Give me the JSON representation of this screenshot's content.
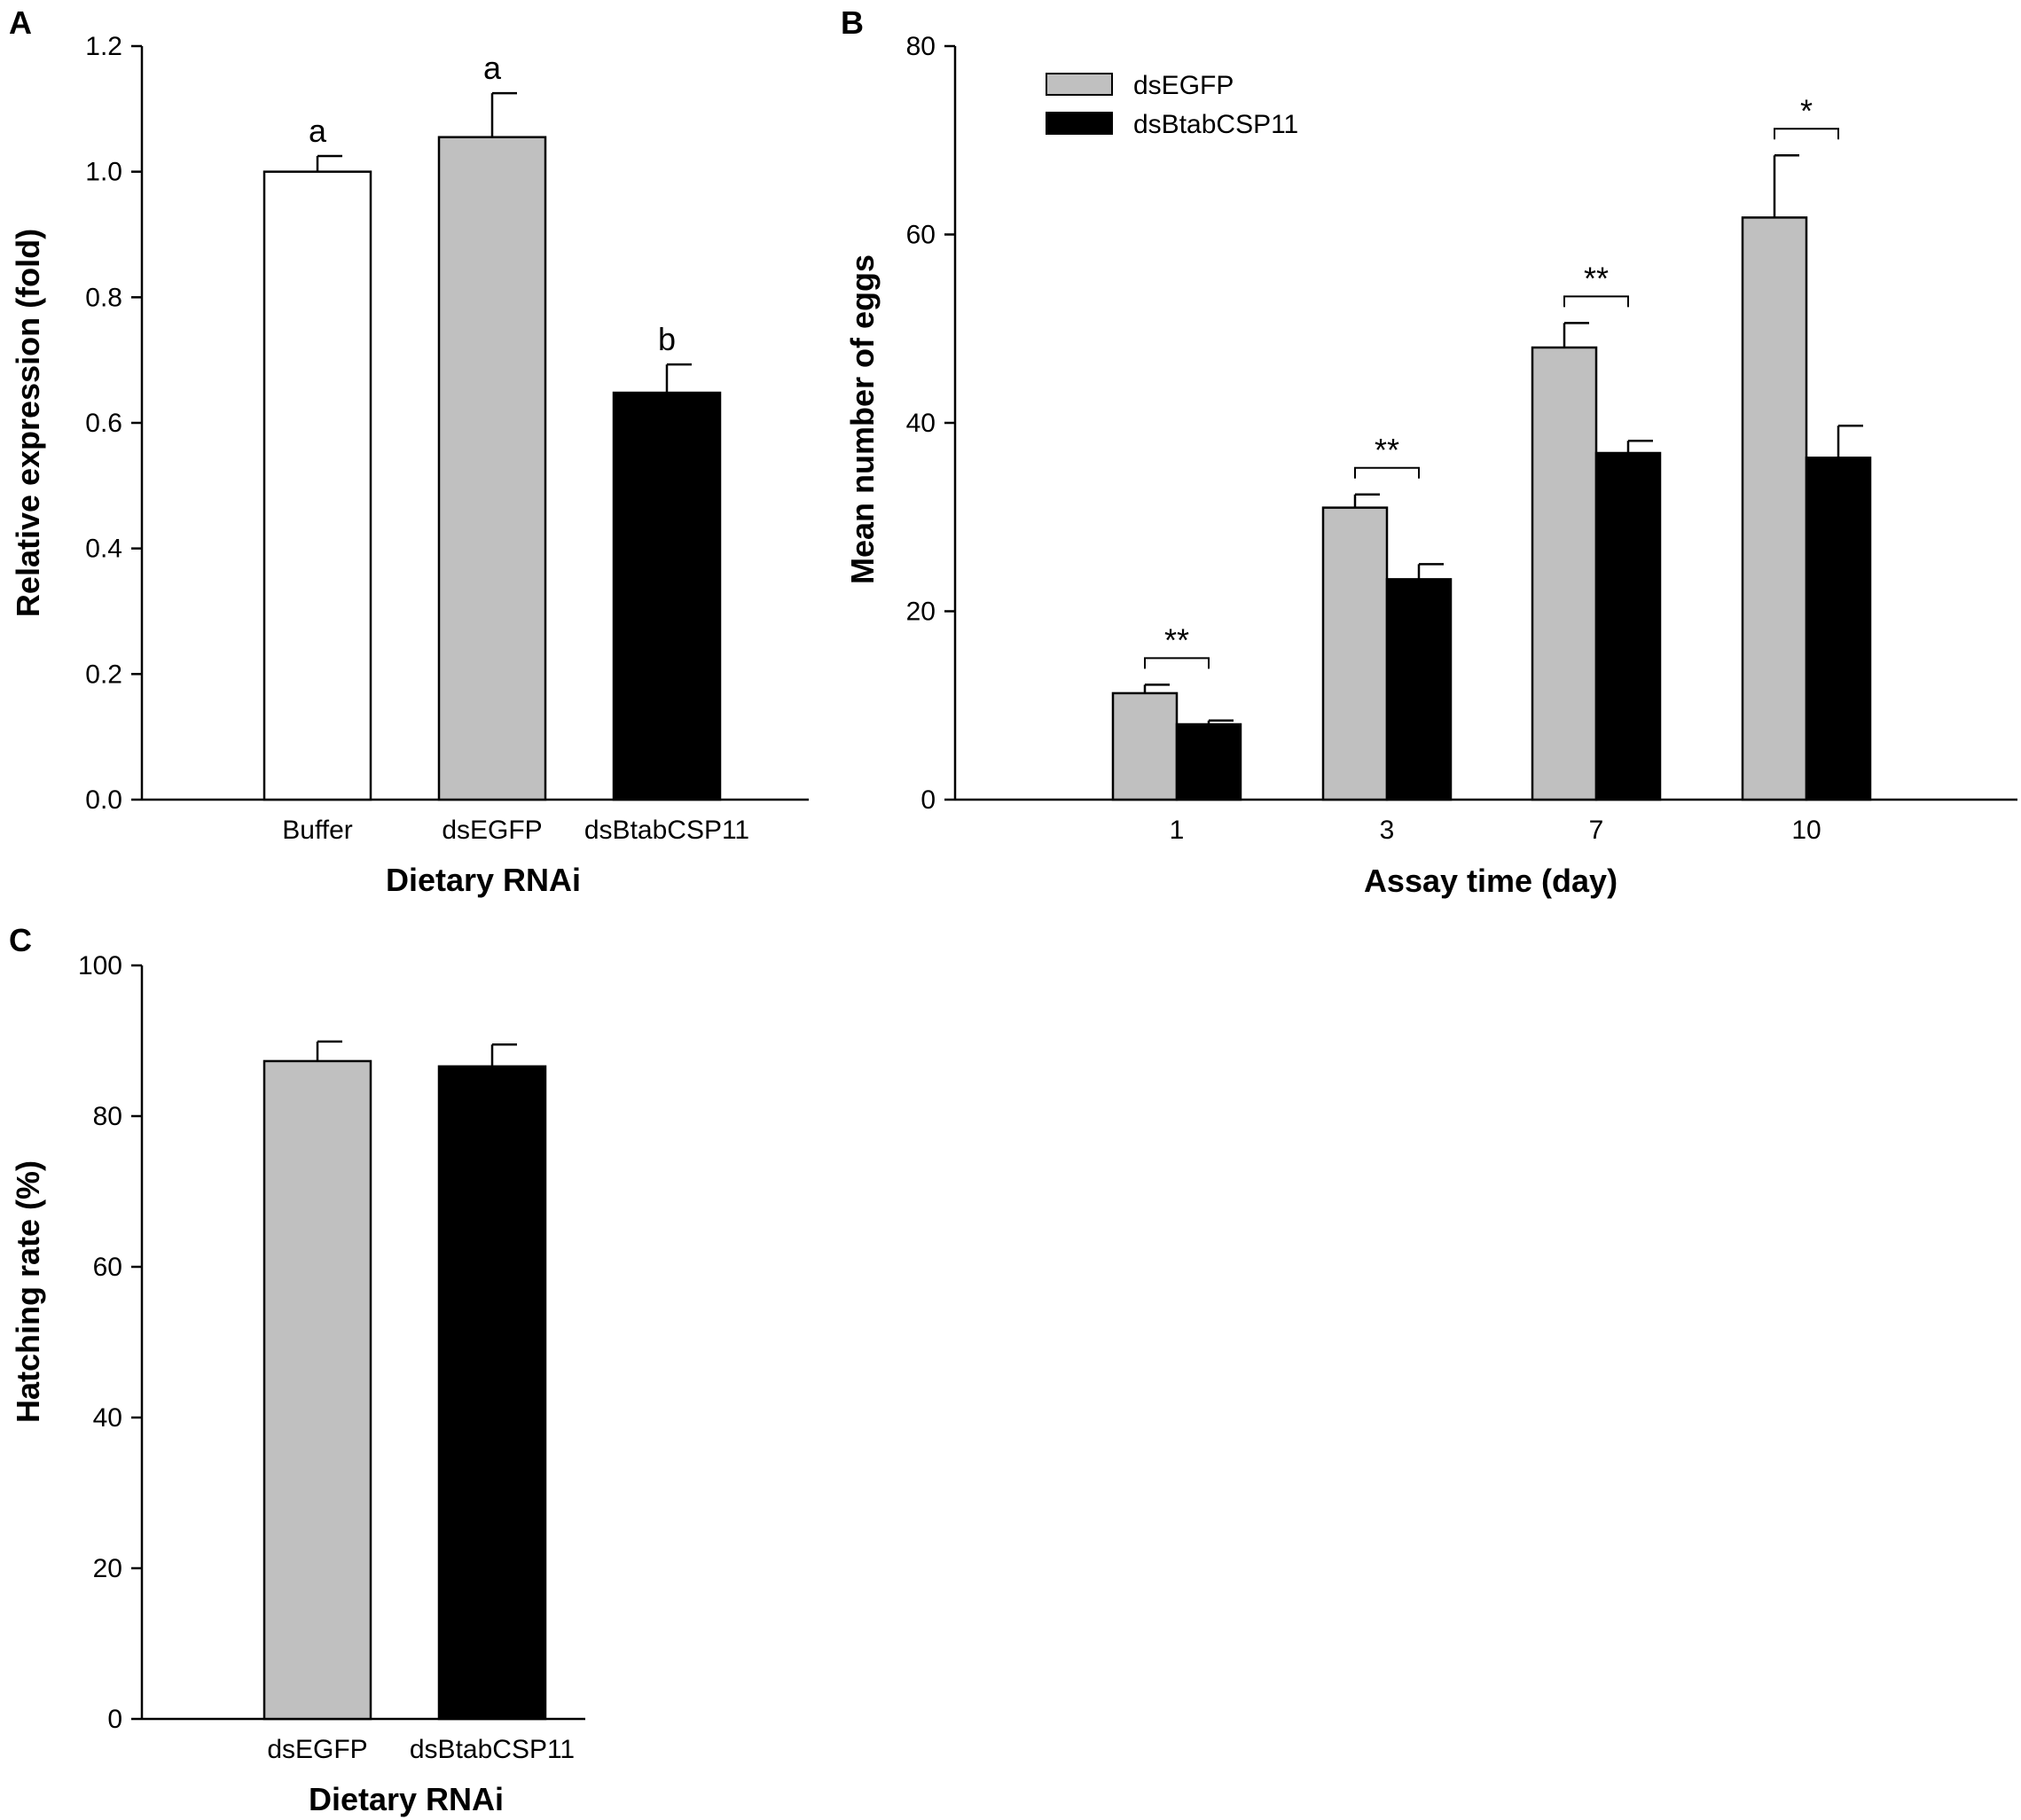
{
  "chart_data": [
    {
      "id": "A",
      "panel_label": "A",
      "type": "bar",
      "title": "",
      "xlabel": "Dietary RNAi",
      "ylabel": "Relative expression (fold)",
      "ylim": [
        0,
        1.2
      ],
      "yticks": [
        0.0,
        0.2,
        0.4,
        0.6,
        0.8,
        1.0,
        1.2
      ],
      "ytick_labels": [
        "0.0",
        "0.2",
        "0.4",
        "0.6",
        "0.8",
        "1.0",
        "1.2"
      ],
      "categories": [
        "Buffer",
        "dsEGFP",
        "dsBtabCSP11"
      ],
      "values": [
        1.0,
        1.055,
        0.648
      ],
      "errors": [
        0.025,
        0.07,
        0.045
      ],
      "colors": [
        "#ffffff",
        "#c0c0c0",
        "#000000"
      ],
      "annotations": [
        "a",
        "a",
        "b"
      ]
    },
    {
      "id": "B",
      "panel_label": "B",
      "type": "bar",
      "title": "",
      "xlabel": "Assay time (day)",
      "ylabel": "Mean number of eggs",
      "ylim": [
        0,
        80
      ],
      "yticks": [
        0,
        20,
        40,
        60,
        80
      ],
      "ytick_labels": [
        "0",
        "20",
        "40",
        "60",
        "80"
      ],
      "categories": [
        "1",
        "3",
        "7",
        "10"
      ],
      "series": [
        {
          "name": "dsEGFP",
          "color": "#c0c0c0",
          "values": [
            11.3,
            31.0,
            48.0,
            61.8
          ],
          "errors": [
            0.9,
            1.4,
            2.6,
            6.6
          ]
        },
        {
          "name": "dsBtabCSP11",
          "color": "#000000",
          "values": [
            8.0,
            23.4,
            36.8,
            36.3
          ],
          "errors": [
            0.4,
            1.6,
            1.3,
            3.4
          ]
        }
      ],
      "significance": [
        "**",
        "**",
        "**",
        "*"
      ],
      "legend_position": "top-left"
    },
    {
      "id": "C",
      "panel_label": "C",
      "type": "bar",
      "title": "",
      "xlabel": "Dietary RNAi",
      "ylabel": "Hatching rate (%)",
      "ylim": [
        0,
        100
      ],
      "yticks": [
        0,
        20,
        40,
        60,
        80,
        100
      ],
      "ytick_labels": [
        "0",
        "20",
        "40",
        "60",
        "80",
        "100"
      ],
      "categories": [
        "dsEGFP",
        "dsBtabCSP11"
      ],
      "values": [
        87.3,
        86.6
      ],
      "errors": [
        2.6,
        2.9
      ],
      "colors": [
        "#c0c0c0",
        "#000000"
      ]
    }
  ]
}
